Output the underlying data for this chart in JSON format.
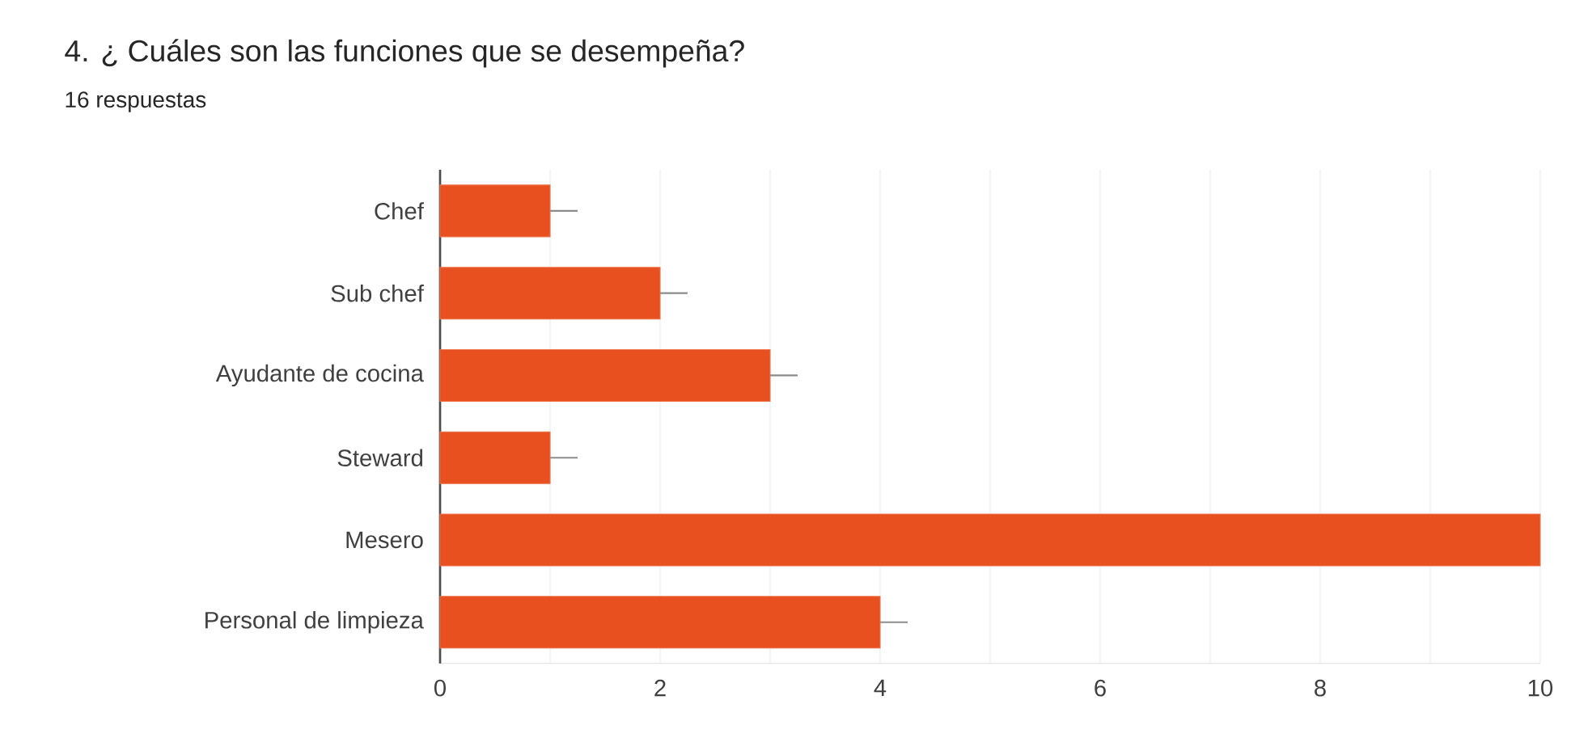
{
  "chart_data": {
    "type": "bar",
    "orientation": "horizontal",
    "title": "4. ¿ Cuáles son las funciones que se desempeña?",
    "subtitle": "16 respuestas",
    "categories": [
      "Chef",
      "Sub chef",
      "Ayudante de cocina",
      "Steward",
      "Mesero",
      "Personal de limpieza"
    ],
    "values": [
      1,
      2,
      3,
      1,
      10,
      4
    ],
    "errors": [
      [
        1,
        1.25
      ],
      [
        2,
        2.25
      ],
      [
        3,
        3.25
      ],
      [
        1,
        1.25
      ],
      null,
      [
        4,
        4.25
      ]
    ],
    "color": "#e8501f",
    "xlim": [
      0,
      10
    ],
    "xticks": [
      0,
      {
        "value": 1,
        "label": null
      },
      2,
      {
        "value": 3,
        "label": null
      },
      4,
      {
        "value": 5,
        "label": null
      },
      6,
      {
        "value": 7,
        "label": null
      },
      8,
      {
        "value": 9,
        "label": null
      },
      10
    ],
    "grid": "x"
  }
}
